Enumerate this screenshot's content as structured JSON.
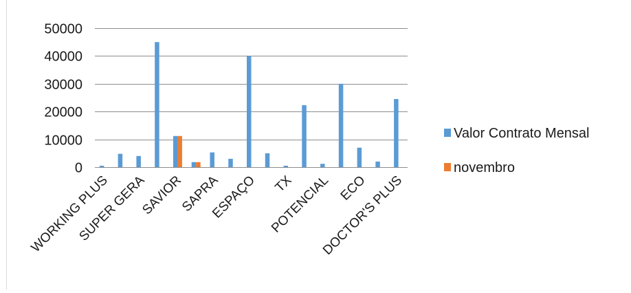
{
  "chart_data": {
    "type": "bar",
    "categories": [
      "WORKING PLUS",
      "",
      "SUPER GERA",
      "",
      "SAVIOR",
      "",
      "SAPRA",
      "",
      "ESPAÇO",
      "",
      "TX",
      "",
      "POTENCIAL",
      "",
      "ECO",
      "",
      "DOCTOR'S PLUS"
    ],
    "series": [
      {
        "name": "Valor Contrato Mensal",
        "color": "#5B9BD5",
        "values": [
          500,
          4800,
          4000,
          45000,
          11200,
          1800,
          5300,
          3000,
          40000,
          5000,
          500,
          22300,
          1200,
          30000,
          7000,
          2000,
          24500
        ]
      },
      {
        "name": "novembro",
        "color": "#ED7D31",
        "values": [
          0,
          0,
          0,
          0,
          11200,
          1800,
          0,
          0,
          0,
          0,
          0,
          0,
          0,
          0,
          0,
          0,
          0
        ]
      }
    ],
    "yticks": [
      0,
      10000,
      20000,
      30000,
      40000,
      50000
    ],
    "ylim": [
      0,
      50000
    ],
    "grid": true,
    "legend": "right"
  }
}
